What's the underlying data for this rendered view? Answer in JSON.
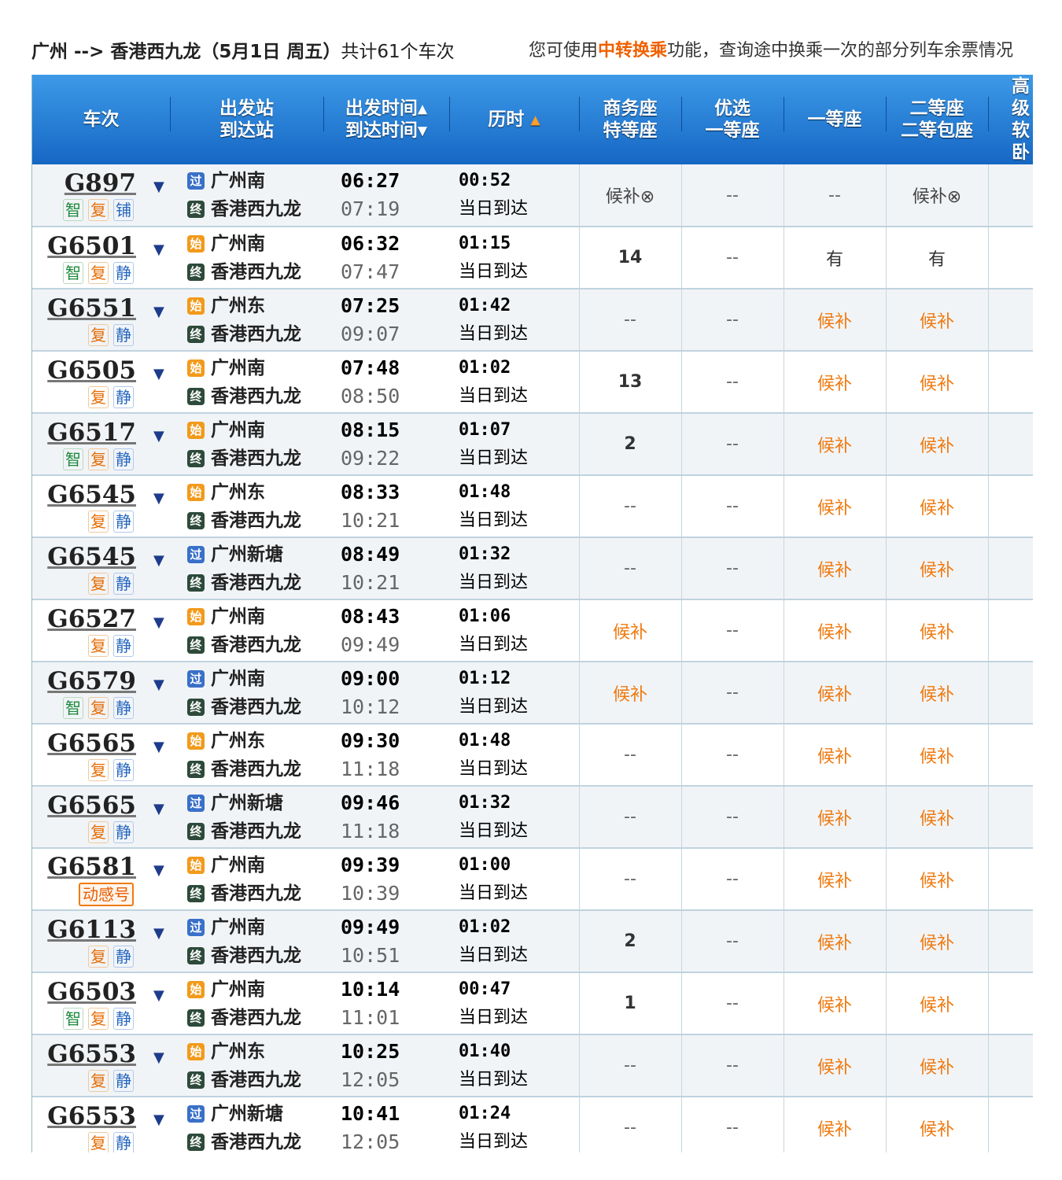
{
  "summary": {
    "route": "广州 --> 香港西九龙（5月1日  周五）",
    "count": "共计61个车次"
  },
  "hint": {
    "before": "您可使用",
    "link": "中转换乘",
    "after": "功能，查询途中换乘一次的部分列车余票情况"
  },
  "headers": {
    "train": "车次",
    "station1": "出发站",
    "station2": "到达站",
    "time1": "出发时间",
    "time2": "到达时间",
    "duration": "历时",
    "business1": "商务座",
    "business2": "特等座",
    "premium1": "优选",
    "premium2": "一等座",
    "first": "一等座",
    "second1": "二等座",
    "second2": "二等包座",
    "softsleeper": "高级软卧"
  },
  "station_icons": {
    "start": "始",
    "pass": "过",
    "end": "终"
  },
  "colors": {
    "header": "#1667c4",
    "waitlist": "#f07a10",
    "accent": "#f06000"
  },
  "rows": [
    {
      "no": "G897",
      "tags": [
        "智",
        "复",
        "铺"
      ],
      "from_type": "pass",
      "from": "广州南",
      "to": "香港西九龙",
      "dep": "06:27",
      "arr": "07:19",
      "dur": "00:52",
      "arrive": "当日到达",
      "seats": [
        "候补⊗",
        "--",
        "--",
        "候补⊗",
        "-"
      ]
    },
    {
      "no": "G6501",
      "tags": [
        "智",
        "复",
        "静"
      ],
      "from_type": "start",
      "from": "广州南",
      "to": "香港西九龙",
      "dep": "06:32",
      "arr": "07:47",
      "dur": "01:15",
      "arrive": "当日到达",
      "seats": [
        "14",
        "--",
        "有",
        "有",
        "-"
      ]
    },
    {
      "no": "G6551",
      "tags": [
        "复",
        "静"
      ],
      "from_type": "start",
      "from": "广州东",
      "to": "香港西九龙",
      "dep": "07:25",
      "arr": "09:07",
      "dur": "01:42",
      "arrive": "当日到达",
      "seats": [
        "--",
        "--",
        "候补",
        "候补",
        "-"
      ]
    },
    {
      "no": "G6505",
      "tags": [
        "复",
        "静"
      ],
      "from_type": "start",
      "from": "广州南",
      "to": "香港西九龙",
      "dep": "07:48",
      "arr": "08:50",
      "dur": "01:02",
      "arrive": "当日到达",
      "seats": [
        "13",
        "--",
        "候补",
        "候补",
        "-"
      ]
    },
    {
      "no": "G6517",
      "tags": [
        "智",
        "复",
        "静"
      ],
      "from_type": "start",
      "from": "广州南",
      "to": "香港西九龙",
      "dep": "08:15",
      "arr": "09:22",
      "dur": "01:07",
      "arrive": "当日到达",
      "seats": [
        "2",
        "--",
        "候补",
        "候补",
        "-"
      ]
    },
    {
      "no": "G6545",
      "tags": [
        "复",
        "静"
      ],
      "from_type": "start",
      "from": "广州东",
      "to": "香港西九龙",
      "dep": "08:33",
      "arr": "10:21",
      "dur": "01:48",
      "arrive": "当日到达",
      "seats": [
        "--",
        "--",
        "候补",
        "候补",
        "-"
      ]
    },
    {
      "no": "G6545",
      "tags": [
        "复",
        "静"
      ],
      "from_type": "pass",
      "from": "广州新塘",
      "to": "香港西九龙",
      "dep": "08:49",
      "arr": "10:21",
      "dur": "01:32",
      "arrive": "当日到达",
      "seats": [
        "--",
        "--",
        "候补",
        "候补",
        "-"
      ]
    },
    {
      "no": "G6527",
      "tags": [
        "复",
        "静"
      ],
      "from_type": "start",
      "from": "广州南",
      "to": "香港西九龙",
      "dep": "08:43",
      "arr": "09:49",
      "dur": "01:06",
      "arrive": "当日到达",
      "seats": [
        "候补",
        "--",
        "候补",
        "候补",
        "-"
      ]
    },
    {
      "no": "G6579",
      "tags": [
        "智",
        "复",
        "静"
      ],
      "from_type": "pass",
      "from": "广州南",
      "to": "香港西九龙",
      "dep": "09:00",
      "arr": "10:12",
      "dur": "01:12",
      "arrive": "当日到达",
      "seats": [
        "候补",
        "--",
        "候补",
        "候补",
        "-"
      ]
    },
    {
      "no": "G6565",
      "tags": [
        "复",
        "静"
      ],
      "from_type": "start",
      "from": "广州东",
      "to": "香港西九龙",
      "dep": "09:30",
      "arr": "11:18",
      "dur": "01:48",
      "arrive": "当日到达",
      "seats": [
        "--",
        "--",
        "候补",
        "候补",
        "-"
      ]
    },
    {
      "no": "G6565",
      "tags": [
        "复",
        "静"
      ],
      "from_type": "pass",
      "from": "广州新塘",
      "to": "香港西九龙",
      "dep": "09:46",
      "arr": "11:18",
      "dur": "01:32",
      "arrive": "当日到达",
      "seats": [
        "--",
        "--",
        "候补",
        "候补",
        "-"
      ]
    },
    {
      "no": "G6581",
      "tags": [
        "动感号"
      ],
      "from_type": "start",
      "from": "广州南",
      "to": "香港西九龙",
      "dep": "09:39",
      "arr": "10:39",
      "dur": "01:00",
      "arrive": "当日到达",
      "seats": [
        "--",
        "--",
        "候补",
        "候补",
        "-"
      ]
    },
    {
      "no": "G6113",
      "tags": [
        "复",
        "静"
      ],
      "from_type": "pass",
      "from": "广州南",
      "to": "香港西九龙",
      "dep": "09:49",
      "arr": "10:51",
      "dur": "01:02",
      "arrive": "当日到达",
      "seats": [
        "2",
        "--",
        "候补",
        "候补",
        "-"
      ]
    },
    {
      "no": "G6503",
      "tags": [
        "智",
        "复",
        "静"
      ],
      "from_type": "start",
      "from": "广州南",
      "to": "香港西九龙",
      "dep": "10:14",
      "arr": "11:01",
      "dur": "00:47",
      "arrive": "当日到达",
      "seats": [
        "1",
        "--",
        "候补",
        "候补",
        "-"
      ]
    },
    {
      "no": "G6553",
      "tags": [
        "复",
        "静"
      ],
      "from_type": "start",
      "from": "广州东",
      "to": "香港西九龙",
      "dep": "10:25",
      "arr": "12:05",
      "dur": "01:40",
      "arrive": "当日到达",
      "seats": [
        "--",
        "--",
        "候补",
        "候补",
        "-"
      ]
    },
    {
      "no": "G6553",
      "tags": [
        "复",
        "静"
      ],
      "from_type": "pass",
      "from": "广州新塘",
      "to": "香港西九龙",
      "dep": "10:41",
      "arr": "12:05",
      "dur": "01:24",
      "arrive": "当日到达",
      "seats": [
        "--",
        "--",
        "候补",
        "候补",
        "-"
      ]
    }
  ]
}
